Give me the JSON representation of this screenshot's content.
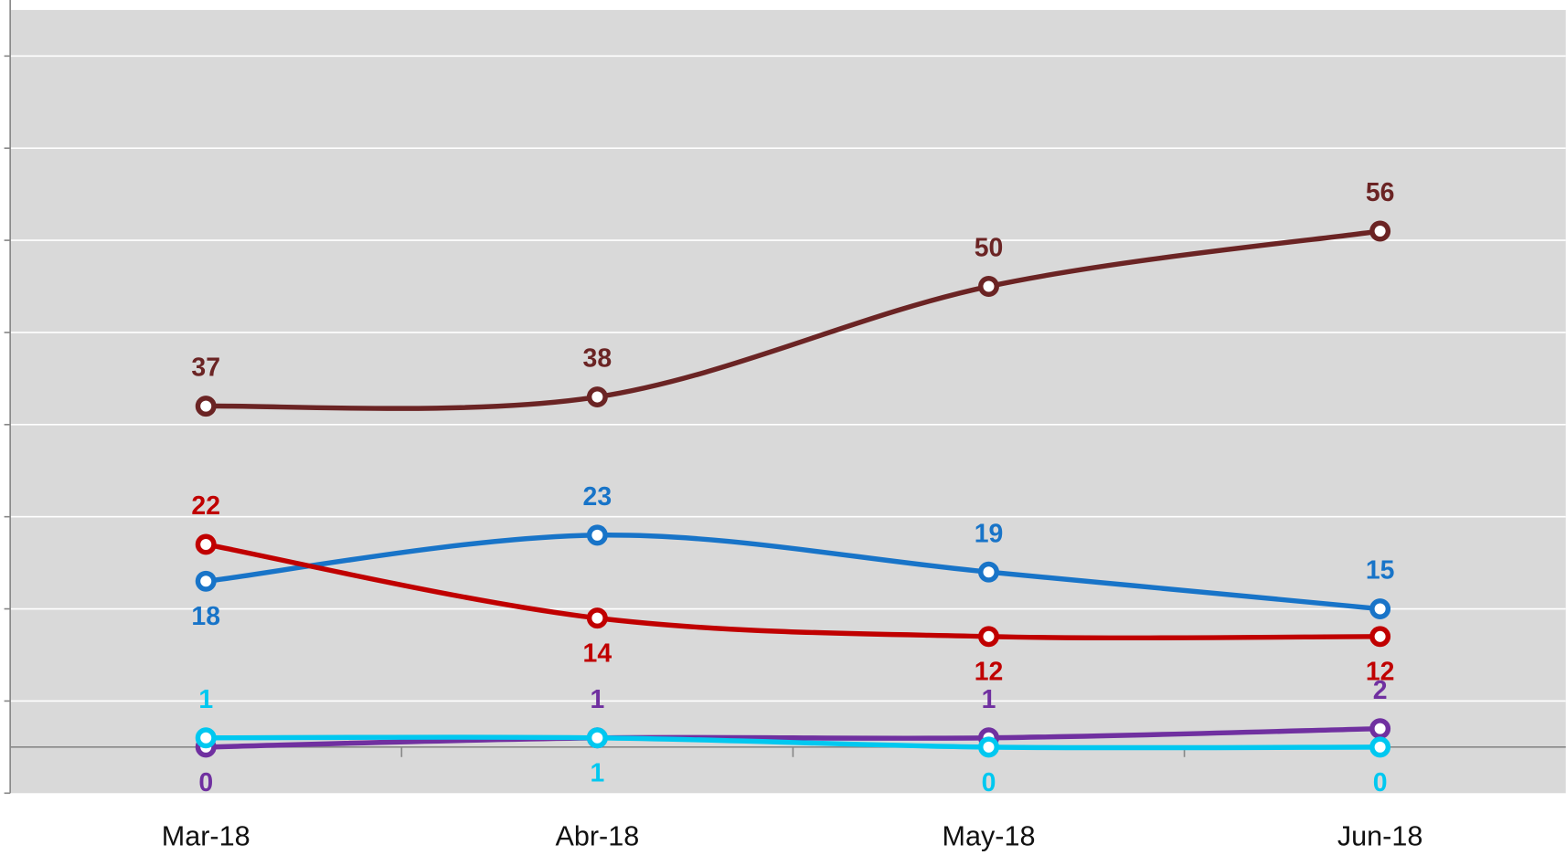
{
  "chart_data": {
    "type": "line",
    "categories": [
      "Mar-18",
      "Abr-18",
      "May-18",
      "Jun-18"
    ],
    "series": [
      {
        "color": "#6b2424",
        "values": [
          37,
          38,
          50,
          56
        ]
      },
      {
        "color": "#1874c8",
        "values": [
          18,
          23,
          19,
          15
        ]
      },
      {
        "color": "#c00000",
        "values": [
          22,
          14,
          12,
          12
        ]
      },
      {
        "color": "#7030a0",
        "values": [
          0,
          1,
          1,
          2
        ]
      },
      {
        "color": "#00c8f0",
        "values": [
          1,
          1,
          0,
          0
        ]
      }
    ],
    "ylim": [
      -5,
      80
    ],
    "yticks": [
      -5,
      5,
      15,
      25,
      35,
      45,
      55,
      65,
      75
    ],
    "grid": true
  }
}
